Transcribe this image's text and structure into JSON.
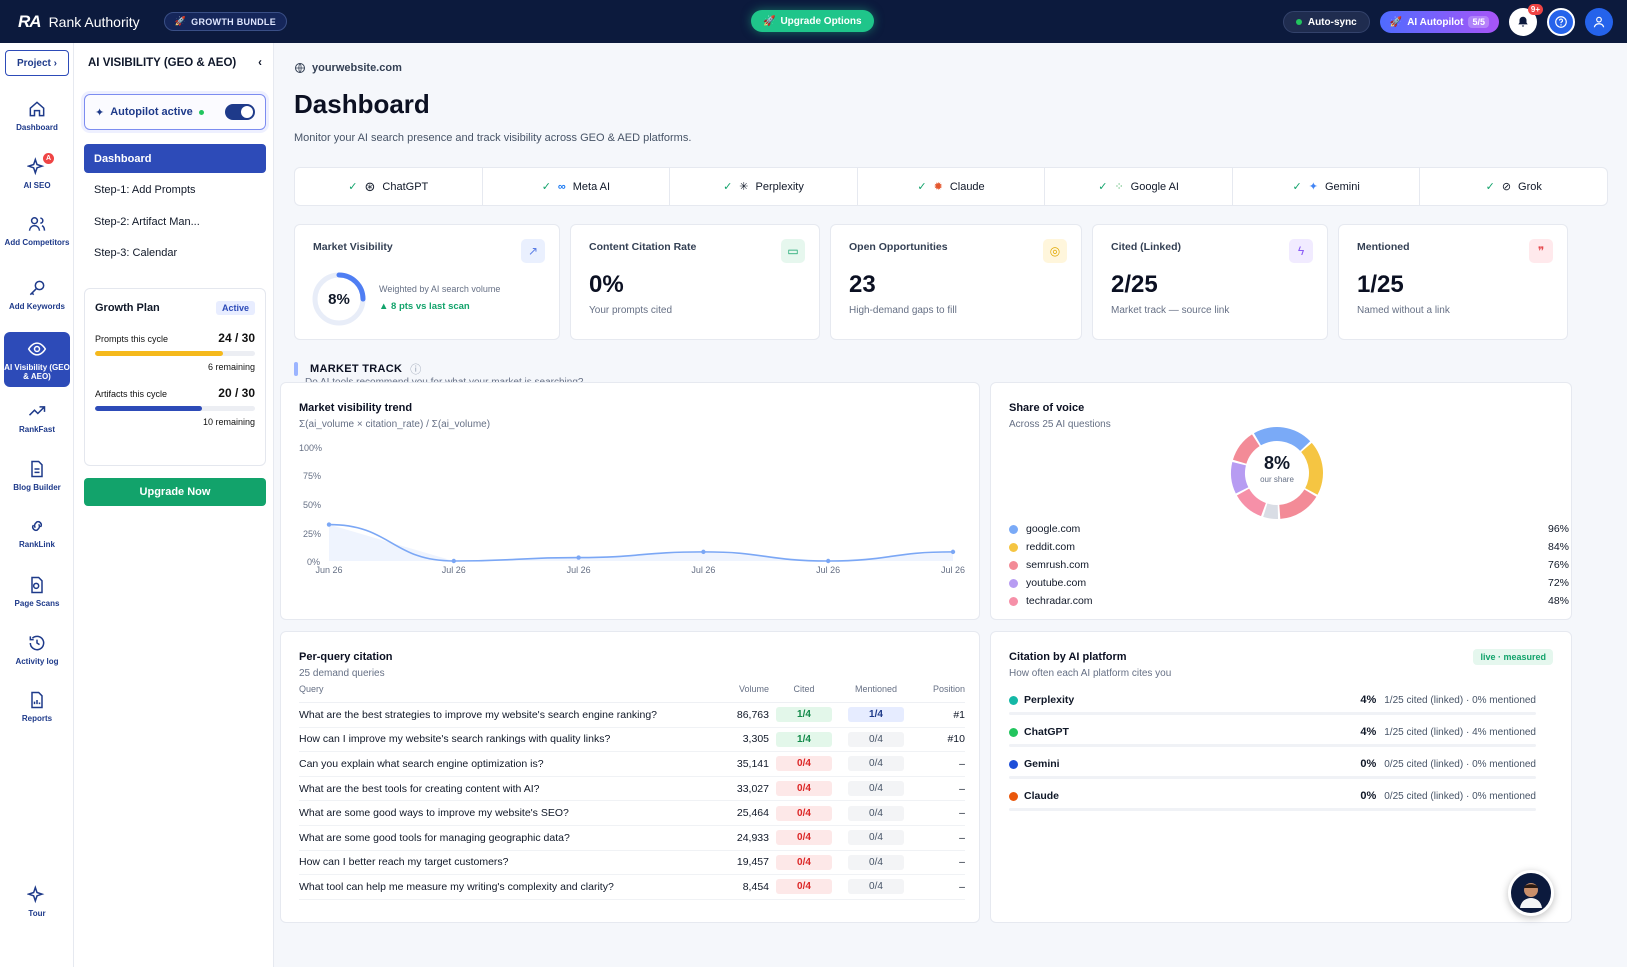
{
  "app": {
    "brand": "Rank Authority",
    "bundle_label": "GROWTH BUNDLE",
    "upgrade_options": "Upgrade Options",
    "auto_sync": "Auto-sync",
    "ai_autopilot": "AI Autopilot",
    "autopilot_count": "5/5",
    "notif_count": "9+"
  },
  "rail": {
    "project": "Project ›",
    "items": [
      {
        "label": "Dashboard",
        "icon": "home-icon"
      },
      {
        "label": "AI SEO",
        "icon": "sparkle-icon",
        "badge": "A"
      },
      {
        "label": "Add Competitors",
        "icon": "users-icon"
      },
      {
        "label": "Add Keywords",
        "icon": "key-icon"
      },
      {
        "label": "AI Visibility (GEO & AEO)",
        "icon": "eye-icon"
      },
      {
        "label": "RankFast",
        "icon": "trend-icon"
      },
      {
        "label": "Blog Builder",
        "icon": "document-icon"
      },
      {
        "label": "RankLink",
        "icon": "link-icon"
      },
      {
        "label": "Page Scans",
        "icon": "scan-icon"
      },
      {
        "label": "Activity log",
        "icon": "history-icon"
      },
      {
        "label": "Reports",
        "icon": "report-icon"
      },
      {
        "label": "Tour",
        "icon": "tour-icon"
      }
    ]
  },
  "side": {
    "title": "AI VISIBILITY (GEO & AEO)",
    "autopilot": "Autopilot active",
    "nav": [
      "Dashboard",
      "Step-1: Add Prompts",
      "Step-2: Artifact Man...",
      "Step-3: Calendar"
    ],
    "plan": {
      "title": "Growth Plan",
      "status": "Active",
      "prompts_label": "Prompts this cycle",
      "prompts_value": "24 / 30",
      "prompts_fill": 0.8,
      "prompts_remaining": "6 remaining",
      "artifacts_label": "Artifacts this cycle",
      "artifacts_value": "20 / 30",
      "artifacts_fill": 0.667,
      "artifacts_remaining": "10 remaining"
    },
    "upgrade_now": "Upgrade Now"
  },
  "main": {
    "site": "yourwebsite.com",
    "title": "Dashboard",
    "subtitle": "Monitor your AI search presence and track visibility across GEO & AED platforms.",
    "platforms": [
      "ChatGPT",
      "Meta AI",
      "Perplexity",
      "Claude",
      "Google AI",
      "Gemini",
      "Grok"
    ],
    "kpis": {
      "market_visibility": {
        "label": "Market Visibility",
        "value": "8%",
        "fill": 0.08,
        "note": "Weighted by AI search volume",
        "delta": "▲ 8 pts vs last scan"
      },
      "citation_rate": {
        "label": "Content Citation Rate",
        "value": "0%",
        "note": "Your prompts cited"
      },
      "opportunities": {
        "label": "Open Opportunities",
        "value": "23",
        "note": "High-demand gaps to fill"
      },
      "cited": {
        "label": "Cited (Linked)",
        "value": "2/25",
        "note": "Market track — source link"
      },
      "mentioned": {
        "label": "Mentioned",
        "value": "1/25",
        "note": "Named without a link"
      }
    },
    "market_track": {
      "title": "MARKET TRACK",
      "subtitle": "Do AI tools recommend you for what your market is searching?"
    }
  },
  "chart_data": [
    {
      "type": "line",
      "title": "Market visibility trend",
      "subtitle": "Σ(ai_volume × citation_rate) / Σ(ai_volume)",
      "x": [
        "Jun 26",
        "Jul 26",
        "Jul 26",
        "Jul 26",
        "Jul 26",
        "Jul 26"
      ],
      "values": [
        32,
        0,
        3,
        8,
        0,
        8
      ],
      "ylim": [
        0,
        100
      ],
      "yticks": [
        "100%",
        "75%",
        "50%",
        "25%",
        "0%"
      ],
      "color": "#7ba7f5"
    },
    {
      "type": "pie",
      "title": "Share of voice",
      "subtitle": "Across 25 AI questions",
      "center_value": "8%",
      "center_label": "our share",
      "items": [
        {
          "name": "google.com",
          "pct": "96%",
          "color": "#7aaaf7"
        },
        {
          "name": "reddit.com",
          "pct": "84%",
          "color": "#f5c542"
        },
        {
          "name": "semrush.com",
          "pct": "76%",
          "color": "#f38b97"
        },
        {
          "name": "youtube.com",
          "pct": "72%",
          "color": "#b79cf2"
        },
        {
          "name": "techradar.com",
          "pct": "48%",
          "color": "#f690a8"
        }
      ]
    }
  ],
  "per_query": {
    "title": "Per-query citation",
    "subtitle": "25 demand queries",
    "headers": [
      "Query",
      "Volume",
      "Cited",
      "Mentioned",
      "Position"
    ],
    "rows": [
      {
        "q": "What are the best strategies to improve my website's search engine ranking?",
        "vol": "86,763",
        "cited": "1/4",
        "cs": "green",
        "men": "1/4",
        "ms": "blue",
        "pos": "#1"
      },
      {
        "q": "How can I improve my website's search rankings with quality links?",
        "vol": "3,305",
        "cited": "1/4",
        "cs": "green",
        "men": "0/4",
        "ms": "grey",
        "pos": "#10"
      },
      {
        "q": "Can you explain what search engine optimization is?",
        "vol": "35,141",
        "cited": "0/4",
        "cs": "red",
        "men": "0/4",
        "ms": "grey",
        "pos": "–"
      },
      {
        "q": "What are the best tools for creating content with AI?",
        "vol": "33,027",
        "cited": "0/4",
        "cs": "red",
        "men": "0/4",
        "ms": "grey",
        "pos": "–"
      },
      {
        "q": "What are some good ways to improve my website's SEO?",
        "vol": "25,464",
        "cited": "0/4",
        "cs": "red",
        "men": "0/4",
        "ms": "grey",
        "pos": "–"
      },
      {
        "q": "What are some good tools for managing geographic data?",
        "vol": "24,933",
        "cited": "0/4",
        "cs": "red",
        "men": "0/4",
        "ms": "grey",
        "pos": "–"
      },
      {
        "q": "How can I better reach my target customers?",
        "vol": "19,457",
        "cited": "0/4",
        "cs": "red",
        "men": "0/4",
        "ms": "grey",
        "pos": "–"
      },
      {
        "q": "What tool can help me measure my writing's complexity and clarity?",
        "vol": "8,454",
        "cited": "0/4",
        "cs": "red",
        "men": "0/4",
        "ms": "grey",
        "pos": "–"
      }
    ]
  },
  "citation_platform": {
    "title": "Citation by AI platform",
    "subtitle": "How often each AI platform cites you",
    "live": "live · measured",
    "rows": [
      {
        "name": "Perplexity",
        "pct": "4%",
        "detail": "1/25 cited (linked) · 0% mentioned",
        "color": "#14b8a6"
      },
      {
        "name": "ChatGPT",
        "pct": "4%",
        "detail": "1/25 cited (linked) · 4% mentioned",
        "color": "#22c55e"
      },
      {
        "name": "Gemini",
        "pct": "0%",
        "detail": "0/25 cited (linked) · 0% mentioned",
        "color": "#1d4ed8"
      },
      {
        "name": "Claude",
        "pct": "0%",
        "detail": "0/25 cited (linked) · 0% mentioned",
        "color": "#ea580c"
      }
    ]
  }
}
